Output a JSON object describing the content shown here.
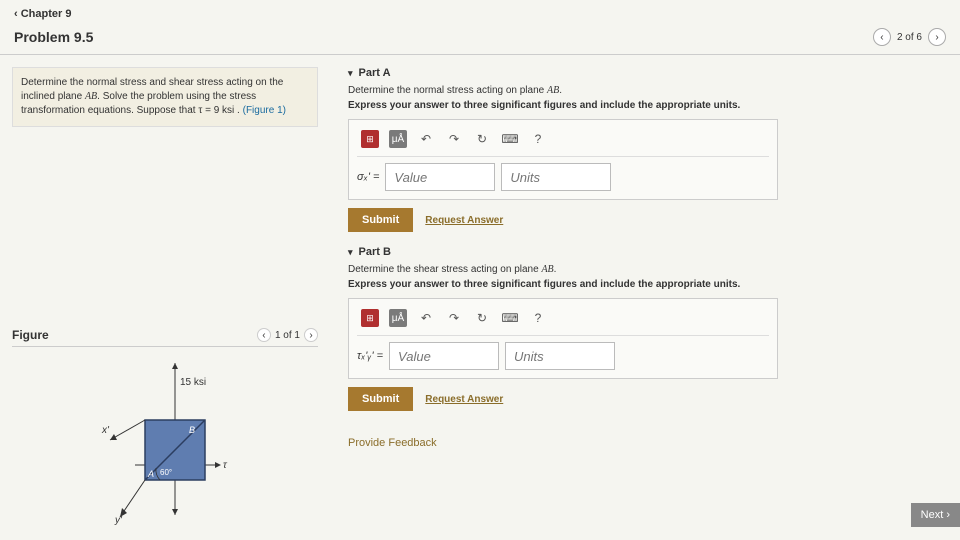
{
  "colors": {
    "accent": "#a6792f",
    "link": "#8a6d2a",
    "figure_link": "#1a6b9f",
    "box_bg": "#f2efe2",
    "page_bg": "#f5f5f0",
    "panel_bg": "#fafaf7",
    "square_fill": "#5f7db0"
  },
  "header": {
    "back_label": "Chapter 9",
    "problem_title": "Problem 9.5",
    "page_status": "2 of 6"
  },
  "problem_statement": {
    "text_1": "Determine the normal stress and shear stress acting on the inclined plane ",
    "plane": "AB",
    "text_2": ". Solve the problem using the stress transformation equations. Suppose that ",
    "tau_expr": "τ = 9 ksi",
    "text_3": " . ",
    "figure_ref": "(Figure 1)"
  },
  "figure": {
    "title": "Figure",
    "counter": "1 of 1",
    "top_stress_label": "15 ksi",
    "angle_label": "60°",
    "labels": {
      "A": "A",
      "B": "B",
      "x": "x'",
      "y": "y'",
      "tau": "τ"
    }
  },
  "parts": [
    {
      "title": "Part A",
      "desc_prefix": "Determine the normal stress acting on plane ",
      "plane": "AB",
      "desc_suffix": ".",
      "instruction": "Express your answer to three significant figures and include the appropriate units.",
      "var_symbol": "σₓ' =",
      "value_placeholder": "Value",
      "units_placeholder": "Units",
      "submit_label": "Submit",
      "request_label": "Request Answer"
    },
    {
      "title": "Part B",
      "desc_prefix": "Determine the shear stress acting on plane ",
      "plane": "AB",
      "desc_suffix": ".",
      "instruction": "Express your answer to three significant figures and include the appropriate units.",
      "var_symbol": "τₓ'ᵧ' =",
      "value_placeholder": "Value",
      "units_placeholder": "Units",
      "submit_label": "Submit",
      "request_label": "Request Answer"
    }
  ],
  "toolbar": {
    "icons": [
      "template",
      "μÅ",
      "↶",
      "↷",
      "↻",
      "⌨",
      "?"
    ]
  },
  "feedback_label": "Provide Feedback",
  "next_label": "Next ›"
}
